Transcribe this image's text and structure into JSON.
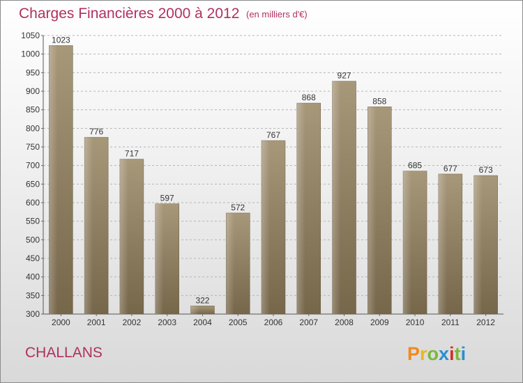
{
  "header": {
    "title": "Charges Financières 2000 à 2012",
    "subtitle": "(en milliers d'€)"
  },
  "footer": {
    "commune": "CHALLANS",
    "logo_text": "Proxiti"
  },
  "colors": {
    "title": "#b03060",
    "bar_top": "#a8987a",
    "bar_bottom": "#7a6a4e",
    "grid": "#b0b0b0"
  },
  "chart_data": {
    "type": "bar",
    "title": "Charges Financières 2000 à 2012",
    "subtitle": "(en milliers d'€)",
    "xlabel": "",
    "ylabel": "",
    "categories": [
      "2000",
      "2001",
      "2002",
      "2003",
      "2004",
      "2005",
      "2006",
      "2007",
      "2008",
      "2009",
      "2010",
      "2011",
      "2012"
    ],
    "values": [
      1023,
      776,
      717,
      597,
      322,
      572,
      767,
      868,
      927,
      858,
      685,
      677,
      673
    ],
    "ylim": [
      300,
      1050
    ],
    "yticks": [
      300,
      350,
      400,
      450,
      500,
      550,
      600,
      650,
      700,
      750,
      800,
      850,
      900,
      950,
      1000,
      1050
    ],
    "grid": "horizontal dashed",
    "legend": "none",
    "data_labels": true
  }
}
